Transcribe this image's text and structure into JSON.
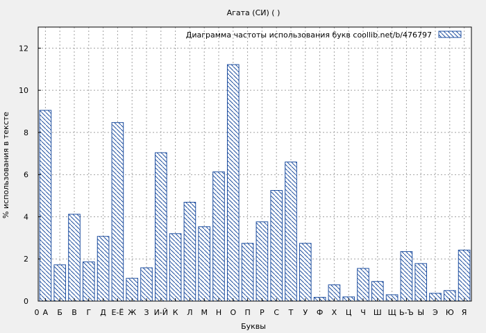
{
  "chart_data": {
    "type": "bar",
    "title": "Агата (СИ) ( )",
    "xlabel": "Буквы",
    "ylabel": "% использования в тексте",
    "legend": {
      "label": "Диаграмма частоты использования букв  coollib.net/b/476797",
      "placement": "top-right"
    },
    "categories": [
      "А",
      "Б",
      "В",
      "Г",
      "Д",
      "Е-Ё",
      "Ж",
      "З",
      "И-Й",
      "К",
      "Л",
      "М",
      "Н",
      "О",
      "П",
      "Р",
      "С",
      "Т",
      "У",
      "Ф",
      "Х",
      "Ц",
      "Ч",
      "Ш",
      "Щ",
      "Ь-Ъ",
      "Ы",
      "Э",
      "Ю",
      "Я"
    ],
    "values": [
      9.05,
      1.72,
      4.12,
      1.86,
      3.07,
      8.47,
      1.08,
      1.58,
      7.04,
      3.2,
      4.69,
      3.53,
      6.13,
      11.22,
      2.74,
      3.76,
      5.25,
      6.6,
      2.74,
      0.18,
      0.77,
      0.2,
      1.55,
      0.93,
      0.3,
      2.35,
      1.78,
      0.37,
      0.5,
      2.42
    ],
    "x_axis_start_label": "0",
    "ylim": [
      0,
      13
    ],
    "yticks": [
      0,
      2,
      4,
      6,
      8,
      10,
      12
    ],
    "grid": true,
    "colors": {
      "bar_stroke": "#1f4fa0",
      "hatch": "#1f4fa0",
      "bar_fill": "#ffffff",
      "grid": "#a0a0a0"
    }
  }
}
